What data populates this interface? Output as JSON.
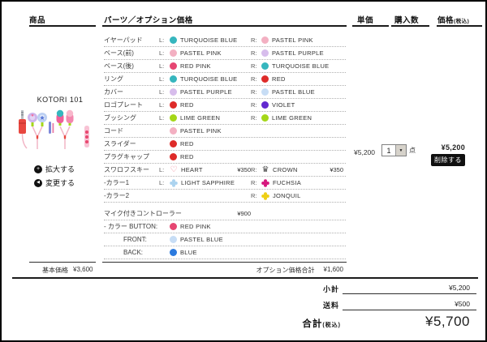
{
  "header": {
    "product_col": "商品",
    "parts_col": "パーツ／オプション価格",
    "unit_price_col": "単価",
    "quantity_col": "購入数",
    "price_col": "価格",
    "price_col_note": "(税込)"
  },
  "product": {
    "name": "KOTORI 101",
    "enlarge_button": "拡大する",
    "change_button": "変更する",
    "enlarge_icon_glyph": "+",
    "change_icon_glyph": "◀"
  },
  "parts": {
    "rows": [
      {
        "name": "イヤーパッド",
        "left": {
          "prefix": "L:",
          "icon": "dot",
          "color": "#36b6be",
          "label": "TURQUOISE BLUE"
        },
        "right": {
          "prefix": "R:",
          "icon": "dot",
          "color": "#f3b0c2",
          "label": "PASTEL PINK"
        }
      },
      {
        "name": "ベース(前)",
        "left": {
          "prefix": "L:",
          "icon": "dot",
          "color": "#f3b0c2",
          "label": "PASTEL PINK"
        },
        "right": {
          "prefix": "R:",
          "icon": "dot",
          "color": "#d7bdec",
          "label": "PASTEL PURPLE"
        }
      },
      {
        "name": "ベース(後)",
        "left": {
          "prefix": "L:",
          "icon": "dot",
          "color": "#e64672",
          "label": "RED PINK"
        },
        "right": {
          "prefix": "R:",
          "icon": "dot",
          "color": "#36b6be",
          "label": "TURQUOISE BLUE"
        }
      },
      {
        "name": "リング",
        "left": {
          "prefix": "L:",
          "icon": "dot",
          "color": "#36b6be",
          "label": "TURQUOISE BLUE"
        },
        "right": {
          "prefix": "R:",
          "icon": "dot",
          "color": "#de2b29",
          "label": "RED"
        }
      },
      {
        "name": "カバー",
        "left": {
          "prefix": "L:",
          "icon": "dot",
          "color": "#d7bdec",
          "label": "PASTEL PURPLE"
        },
        "right": {
          "prefix": "R:",
          "icon": "dot",
          "color": "#c7ddf5",
          "label": "PASTEL BLUE"
        }
      },
      {
        "name": "ロゴプレート",
        "left": {
          "prefix": "L:",
          "icon": "dot",
          "color": "#de2b29",
          "label": "RED"
        },
        "right": {
          "prefix": "R:",
          "icon": "dot",
          "color": "#6229cf",
          "label": "VIOLET"
        }
      },
      {
        "name": "ブッシング",
        "left": {
          "prefix": "L:",
          "icon": "dot",
          "color": "#a4d718",
          "label": "LIME GREEN"
        },
        "right": {
          "prefix": "R:",
          "icon": "dot",
          "color": "#a4d718",
          "label": "LIME GREEN"
        }
      },
      {
        "name": "コード",
        "left": {
          "prefix": "",
          "icon": "dot",
          "color": "#f3b0c2",
          "label": "PASTEL PINK"
        },
        "right": null
      },
      {
        "name": "スライダー",
        "left": {
          "prefix": "",
          "icon": "dot",
          "color": "#de2b29",
          "label": "RED"
        },
        "right": null
      },
      {
        "name": "プラグキャップ",
        "left": {
          "prefix": "",
          "icon": "dot",
          "color": "#de2b29",
          "label": "RED"
        },
        "right": null
      },
      {
        "name": "スワロフスキー",
        "left": {
          "prefix": "L:",
          "icon": "heart",
          "color": "#ee7f92",
          "label": "HEART",
          "price": "¥350"
        },
        "right": {
          "prefix": "R:",
          "icon": "crown",
          "color": "#4a4a4a",
          "label": "CROWN",
          "price": "¥350"
        }
      },
      {
        "name": "-カラー1",
        "left": {
          "prefix": "L:",
          "icon": "flower",
          "color": "#abd3ef",
          "label": "LIGHT SAPPHIRE"
        },
        "right": {
          "prefix": "R:",
          "icon": "flower",
          "color": "#d6187e",
          "label": "FUCHSIA"
        }
      },
      {
        "name": "-カラー2",
        "left": null,
        "right": {
          "prefix": "R:",
          "icon": "flower",
          "color": "#eecf15",
          "label": "JONQUIL"
        }
      },
      {
        "name": "マイク付きコントローラー",
        "gap_before": true,
        "left": {
          "price": "¥900"
        },
        "right": null
      },
      {
        "name": "- カラー BUTTON:",
        "left": {
          "prefix": "",
          "icon": "dot",
          "color": "#e64672",
          "label": "RED PINK"
        },
        "right": null
      },
      {
        "name": "FRONT:",
        "indent": 1,
        "left": {
          "prefix": "",
          "icon": "dot",
          "color": "#c7ddf5",
          "label": "PASTEL BLUE"
        },
        "right": null
      },
      {
        "name": "BACK:",
        "indent": 1,
        "left": {
          "prefix": "",
          "icon": "dot",
          "color": "#2b7ade",
          "label": "BLUE"
        },
        "right": null
      }
    ]
  },
  "order": {
    "unit_price": "¥5,200",
    "quantity": "1",
    "quantity_unit": "点",
    "price": "¥5,200",
    "delete_button": "削除する"
  },
  "summary": {
    "base_price_label": "基本価格",
    "base_price_value": "¥3,600",
    "option_total_label": "オプション価格合計",
    "option_total_value": "¥1,600",
    "subtotal_label": "小計",
    "subtotal_value": "¥5,200",
    "shipping_label": "送料",
    "shipping_value": "¥500",
    "total_label": "合計",
    "total_note": "(税込)",
    "total_value": "¥5,700"
  }
}
